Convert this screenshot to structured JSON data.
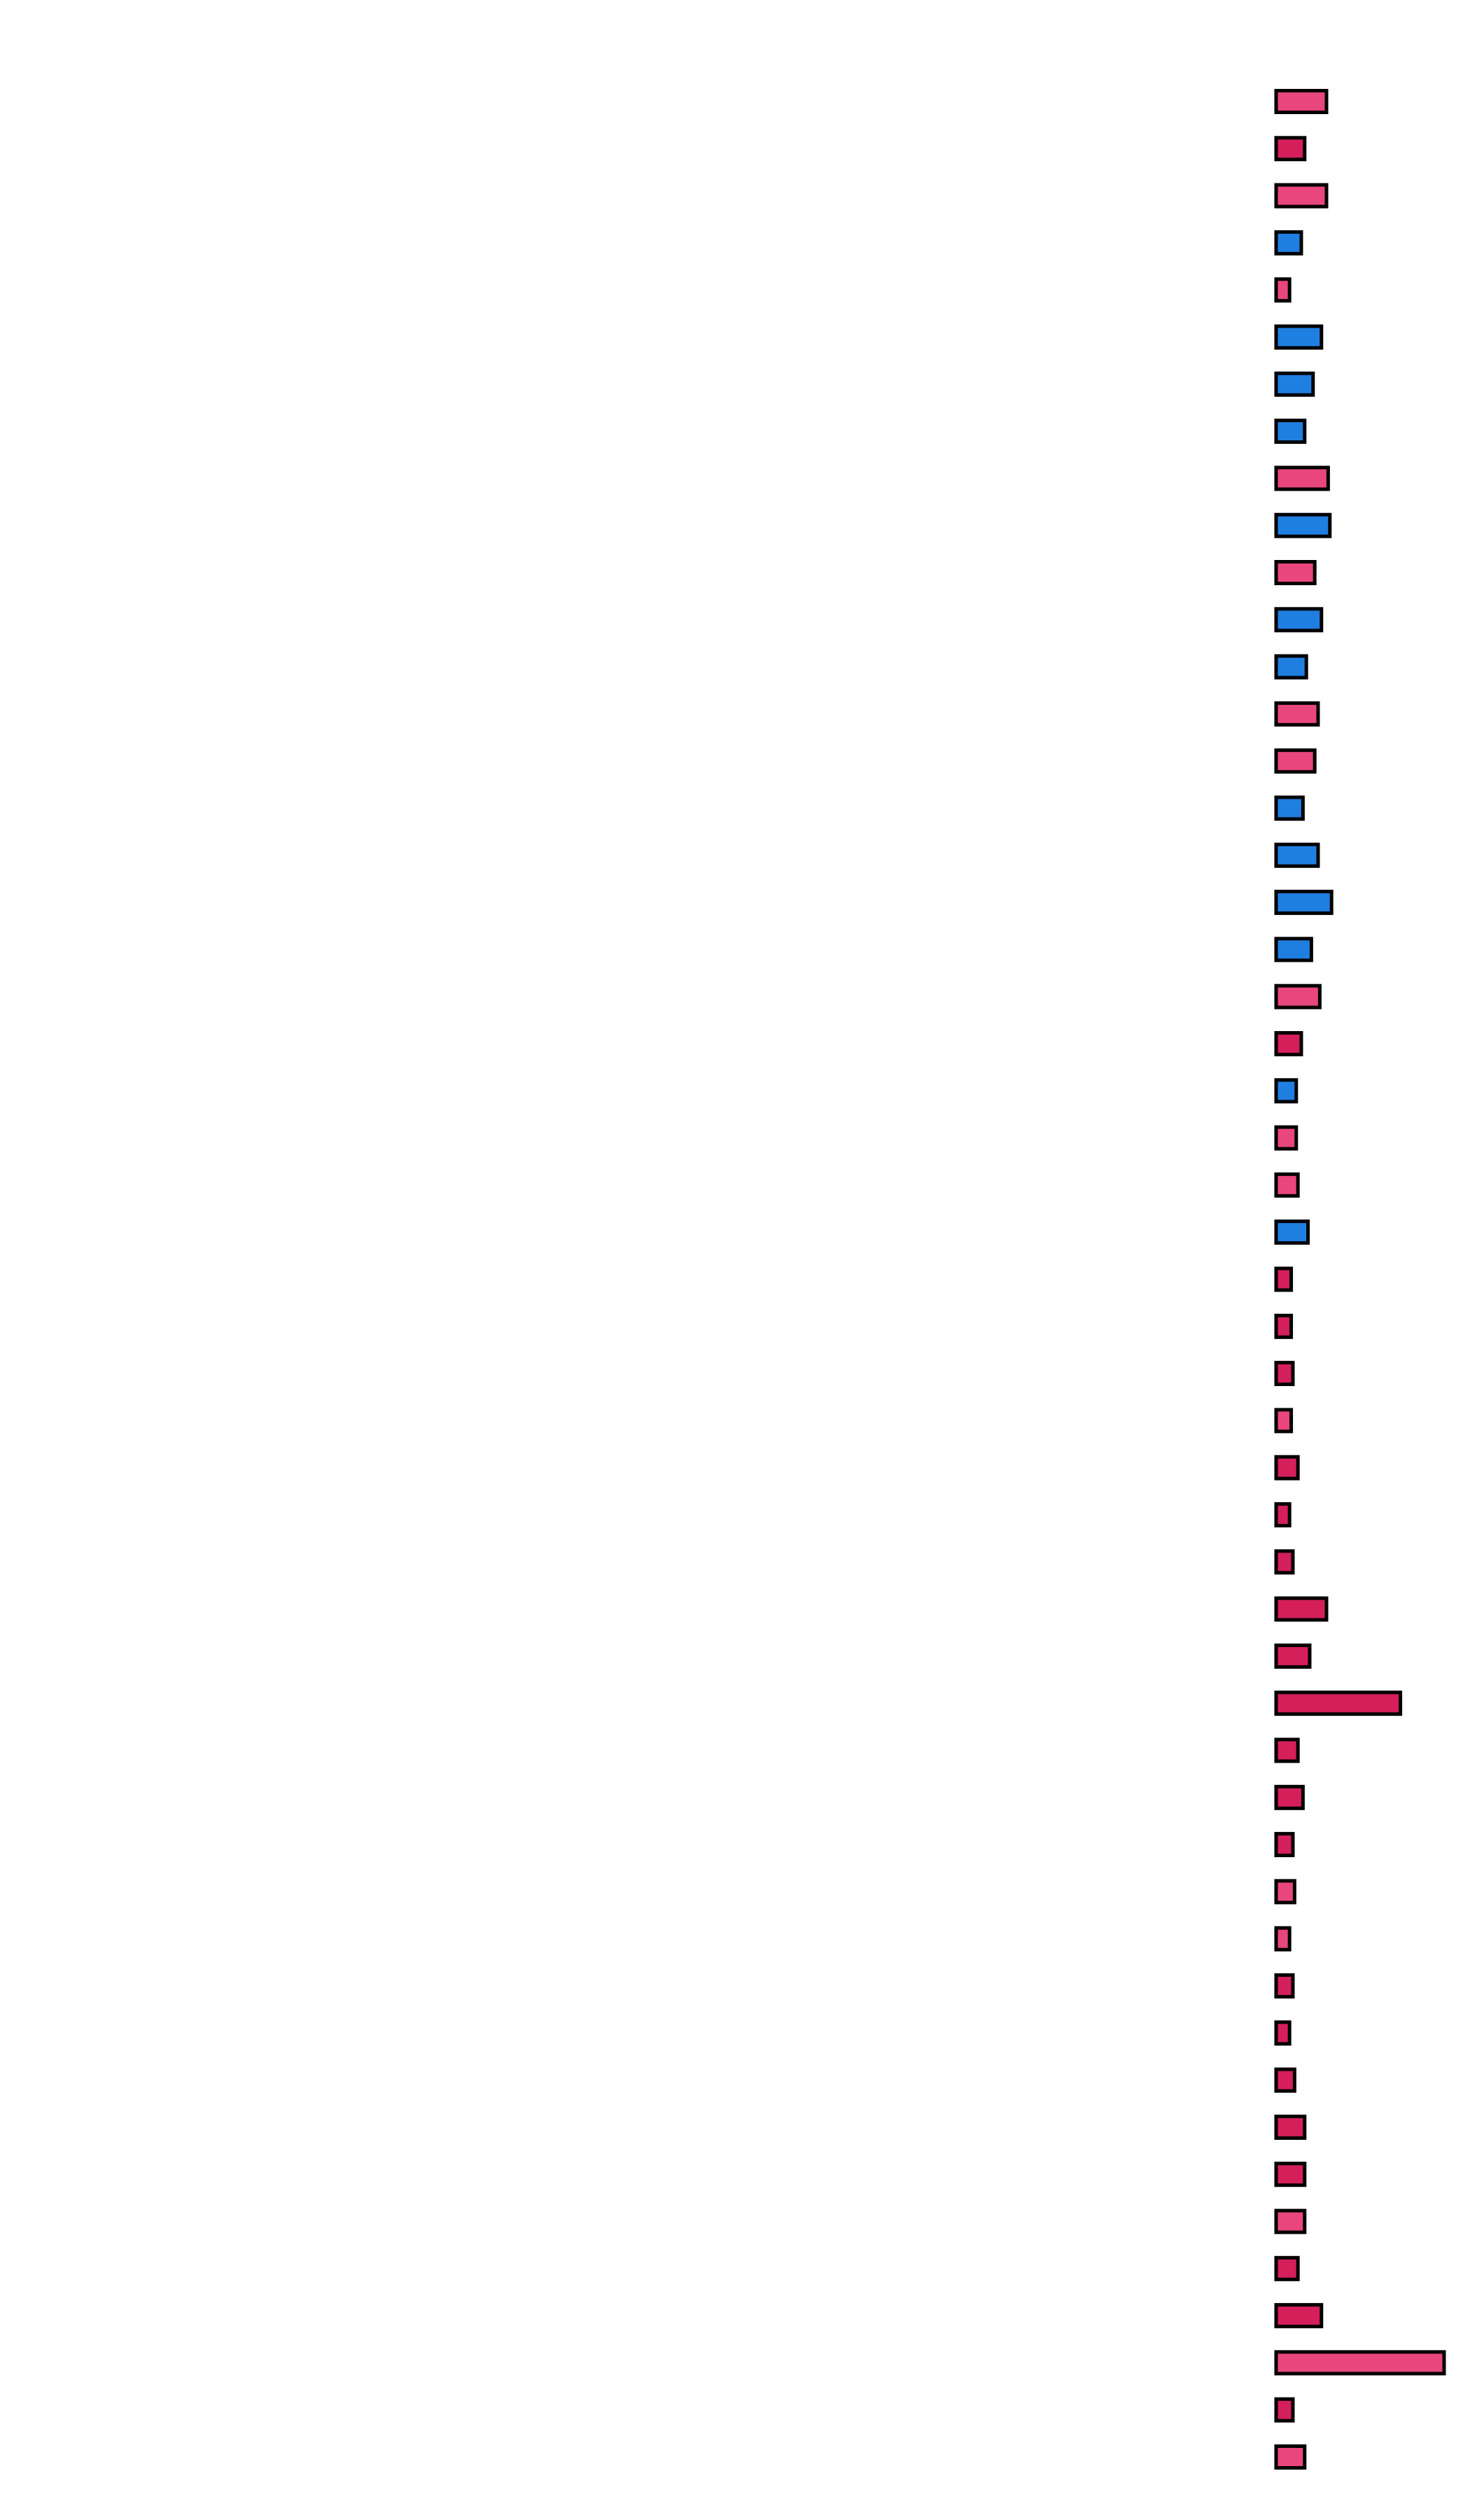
{
  "chart_data": {
    "type": "bar",
    "orientation": "horizontal",
    "title": "",
    "xlabel": "",
    "ylabel": "",
    "grid": false,
    "axes_visible": false,
    "xlim": [
      0,
      100
    ],
    "values": [
      30,
      17,
      30,
      15,
      8,
      27,
      22,
      17,
      31,
      32,
      23,
      27,
      18,
      25,
      23,
      16,
      25,
      33,
      21,
      26,
      15,
      12,
      12,
      13,
      19,
      9,
      9,
      10,
      9,
      13,
      8,
      10,
      30,
      20,
      74,
      13,
      16,
      10,
      11,
      8,
      10,
      8,
      11,
      17,
      17,
      17,
      13,
      27,
      100,
      10,
      17
    ],
    "color_groups": [
      "pink",
      "crimson",
      "pink",
      "blue",
      "pink",
      "blue",
      "blue",
      "blue",
      "pink",
      "blue",
      "pink",
      "blue",
      "blue",
      "pink",
      "pink",
      "blue",
      "blue",
      "blue",
      "blue",
      "pink",
      "crimson",
      "blue",
      "pink",
      "pink",
      "blue",
      "crimson",
      "crimson",
      "crimson",
      "pink",
      "crimson",
      "crimson",
      "crimson",
      "crimson",
      "crimson",
      "crimson",
      "crimson",
      "crimson",
      "crimson",
      "pink",
      "pink",
      "crimson",
      "crimson",
      "crimson",
      "crimson",
      "crimson",
      "pink",
      "crimson",
      "crimson",
      "pink",
      "crimson",
      "pink"
    ],
    "colors": {
      "pink": "#E8467C",
      "crimson": "#D41F5A",
      "blue": "#1F7FE0"
    }
  }
}
